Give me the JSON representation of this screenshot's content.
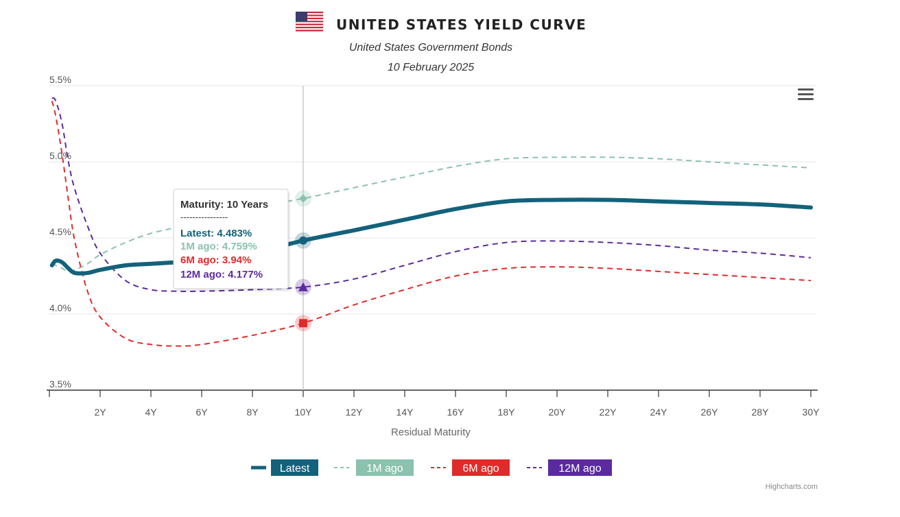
{
  "header": {
    "title": "UNITED STATES YIELD CURVE",
    "subtitle": "United States Government Bonds",
    "date": "10 February 2025",
    "flag_icon": "us-flag-icon"
  },
  "menu_icon": "hamburger-menu-icon",
  "credit": "Highcharts.com",
  "tooltip": {
    "heading": "Maturity: 10 Years",
    "separator": "----------------",
    "rows": [
      "Latest: 4.483%",
      "1M ago: 4.759%",
      "6M ago: 3.94%",
      "12M ago: 4.177%"
    ]
  },
  "chart_data": {
    "type": "line",
    "xlabel": "Residual Maturity",
    "ylabel": "",
    "xlim": [
      0,
      30
    ],
    "ylim": [
      3.5,
      5.5
    ],
    "x_ticks": [
      "2Y",
      "4Y",
      "6Y",
      "8Y",
      "10Y",
      "12Y",
      "14Y",
      "16Y",
      "18Y",
      "20Y",
      "22Y",
      "24Y",
      "26Y",
      "28Y",
      "30Y"
    ],
    "x_tick_values": [
      2,
      4,
      6,
      8,
      10,
      12,
      14,
      16,
      18,
      20,
      22,
      24,
      26,
      28,
      30
    ],
    "y_ticks": [
      "3.5%",
      "4.0%",
      "4.5%",
      "5.0%",
      "5.5%"
    ],
    "y_tick_values": [
      3.5,
      4.0,
      4.5,
      5.0,
      5.5
    ],
    "grid": true,
    "legend_position": "bottom-center",
    "highlight_x": 10,
    "series": [
      {
        "name": "Latest",
        "color": "#13627b",
        "style": "solid",
        "x": [
          0.1,
          0.25,
          0.5,
          0.75,
          1,
          1.5,
          2,
          3,
          4,
          5,
          6,
          8,
          10,
          12,
          14,
          16,
          18,
          20,
          22,
          24,
          26,
          28,
          30
        ],
        "y": [
          4.32,
          4.35,
          4.34,
          4.3,
          4.27,
          4.27,
          4.29,
          4.32,
          4.33,
          4.34,
          4.35,
          4.4,
          4.483,
          4.55,
          4.62,
          4.69,
          4.74,
          4.75,
          4.75,
          4.74,
          4.73,
          4.72,
          4.7
        ]
      },
      {
        "name": "1M ago",
        "color": "#8ac2ad",
        "style": "dash",
        "x": [
          0.1,
          0.25,
          0.5,
          0.75,
          1,
          1.5,
          2,
          3,
          4,
          5,
          6,
          8,
          10,
          12,
          14,
          16,
          18,
          20,
          22,
          24,
          26,
          28,
          30
        ],
        "y": [
          4.33,
          4.32,
          4.3,
          4.28,
          4.29,
          4.33,
          4.39,
          4.47,
          4.53,
          4.57,
          4.62,
          4.7,
          4.759,
          4.83,
          4.9,
          4.97,
          5.02,
          5.03,
          5.03,
          5.02,
          5.0,
          4.98,
          4.96
        ]
      },
      {
        "name": "6M ago",
        "color": "#e02b2b",
        "style": "dash",
        "x": [
          0.1,
          0.25,
          0.5,
          0.75,
          1,
          1.5,
          2,
          3,
          4,
          5,
          6,
          8,
          10,
          12,
          14,
          16,
          18,
          20,
          22,
          24,
          26,
          28,
          30
        ],
        "y": [
          5.4,
          5.3,
          5.05,
          4.75,
          4.48,
          4.15,
          3.98,
          3.84,
          3.8,
          3.79,
          3.8,
          3.86,
          3.94,
          4.06,
          4.16,
          4.25,
          4.3,
          4.31,
          4.3,
          4.28,
          4.26,
          4.24,
          4.22
        ]
      },
      {
        "name": "12M ago",
        "color": "#5b2a9e",
        "style": "dash",
        "x": [
          0.1,
          0.25,
          0.5,
          0.75,
          1,
          1.5,
          2,
          3,
          4,
          5,
          6,
          8,
          10,
          12,
          14,
          16,
          18,
          20,
          22,
          24,
          26,
          28,
          30
        ],
        "y": [
          5.42,
          5.4,
          5.25,
          5.0,
          4.82,
          4.58,
          4.4,
          4.22,
          4.16,
          4.15,
          4.15,
          4.16,
          4.177,
          4.23,
          4.32,
          4.41,
          4.47,
          4.48,
          4.47,
          4.45,
          4.42,
          4.4,
          4.37
        ]
      }
    ]
  }
}
